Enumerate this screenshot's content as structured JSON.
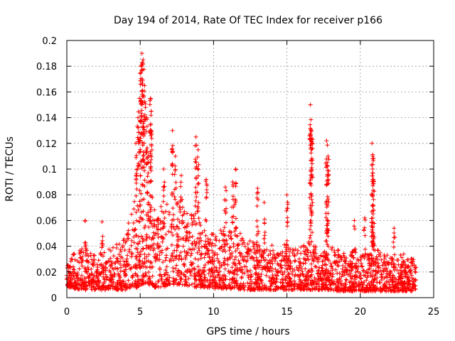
{
  "chart_data": {
    "type": "scatter",
    "title": "Day 194 of 2014, Rate Of TEC Index for receiver p166",
    "xlabel": "GPS time / hours",
    "ylabel": "ROTI / TECUs",
    "xlim": [
      0,
      25
    ],
    "ylim": [
      0,
      0.2
    ],
    "x_ticks": [
      0,
      5,
      10,
      15,
      20,
      25
    ],
    "y_ticks": [
      0,
      0.02,
      0.04,
      0.06,
      0.08,
      0.1,
      0.12,
      0.14,
      0.16,
      0.18,
      0.2
    ],
    "x_tick_labels": [
      "0",
      "5",
      "10",
      "15",
      "20",
      "25"
    ],
    "y_tick_labels": [
      "0",
      "0.02",
      "0.04",
      "0.06",
      "0.08",
      "0.1",
      "0.12",
      "0.14",
      "0.16",
      "0.18",
      "0.2"
    ],
    "grid": true,
    "marker": "+",
    "series": [
      {
        "name": "ROTI",
        "color": "#ff0000",
        "envelope": {
          "x": [
            0,
            0.5,
            1,
            1.5,
            2,
            2.5,
            3,
            3.5,
            4,
            4.5,
            4.8,
            5.0,
            5.2,
            5.5,
            5.8,
            6.0,
            6.5,
            7.0,
            7.5,
            8.0,
            8.5,
            9.0,
            9.5,
            10.0,
            10.5,
            11.0,
            11.5,
            12.0,
            12.5,
            13.0,
            13.5,
            14.0,
            14.5,
            15.0,
            15.5,
            16.0,
            16.5,
            17.0,
            17.5,
            18.0,
            18.5,
            19.0,
            19.5,
            20.0,
            20.5,
            21.0,
            21.5,
            22.0,
            22.5,
            23.0,
            23.5,
            23.8
          ],
          "typical_max": [
            0.025,
            0.035,
            0.04,
            0.038,
            0.033,
            0.037,
            0.04,
            0.042,
            0.05,
            0.07,
            0.09,
            0.1,
            0.1,
            0.09,
            0.08,
            0.07,
            0.075,
            0.08,
            0.075,
            0.07,
            0.065,
            0.06,
            0.055,
            0.05,
            0.055,
            0.055,
            0.05,
            0.05,
            0.045,
            0.045,
            0.042,
            0.042,
            0.04,
            0.042,
            0.04,
            0.04,
            0.045,
            0.04,
            0.042,
            0.04,
            0.038,
            0.036,
            0.036,
            0.036,
            0.038,
            0.038,
            0.036,
            0.035,
            0.035,
            0.035,
            0.035,
            0.03
          ],
          "min": [
            0.008,
            0.007,
            0.006,
            0.006,
            0.006,
            0.006,
            0.006,
            0.006,
            0.006,
            0.006,
            0.008,
            0.01,
            0.01,
            0.01,
            0.008,
            0.008,
            0.008,
            0.01,
            0.01,
            0.01,
            0.008,
            0.008,
            0.008,
            0.007,
            0.007,
            0.007,
            0.007,
            0.006,
            0.006,
            0.006,
            0.006,
            0.006,
            0.006,
            0.006,
            0.006,
            0.006,
            0.006,
            0.006,
            0.006,
            0.006,
            0.005,
            0.005,
            0.005,
            0.005,
            0.005,
            0.005,
            0.005,
            0.005,
            0.005,
            0.005,
            0.005,
            0.006
          ]
        },
        "spikes": [
          {
            "x": 1.25,
            "y": 0.06
          },
          {
            "x": 2.4,
            "y": 0.059
          },
          {
            "x": 4.7,
            "y": 0.12
          },
          {
            "x": 4.85,
            "y": 0.14
          },
          {
            "x": 4.95,
            "y": 0.155
          },
          {
            "x": 5.05,
            "y": 0.175
          },
          {
            "x": 5.12,
            "y": 0.19
          },
          {
            "x": 5.2,
            "y": 0.185
          },
          {
            "x": 5.3,
            "y": 0.165
          },
          {
            "x": 5.45,
            "y": 0.14
          },
          {
            "x": 5.55,
            "y": 0.11
          },
          {
            "x": 5.7,
            "y": 0.155
          },
          {
            "x": 5.75,
            "y": 0.145
          },
          {
            "x": 6.6,
            "y": 0.1
          },
          {
            "x": 7.2,
            "y": 0.13
          },
          {
            "x": 7.4,
            "y": 0.11
          },
          {
            "x": 7.8,
            "y": 0.095
          },
          {
            "x": 8.8,
            "y": 0.125
          },
          {
            "x": 8.95,
            "y": 0.115
          },
          {
            "x": 9.5,
            "y": 0.092
          },
          {
            "x": 10.8,
            "y": 0.086
          },
          {
            "x": 11.5,
            "y": 0.1
          },
          {
            "x": 11.3,
            "y": 0.09
          },
          {
            "x": 13.0,
            "y": 0.085
          },
          {
            "x": 13.45,
            "y": 0.074
          },
          {
            "x": 15.0,
            "y": 0.08
          },
          {
            "x": 16.6,
            "y": 0.15
          },
          {
            "x": 16.65,
            "y": 0.13
          },
          {
            "x": 16.7,
            "y": 0.124
          },
          {
            "x": 17.7,
            "y": 0.122
          },
          {
            "x": 17.8,
            "y": 0.11
          },
          {
            "x": 17.75,
            "y": 0.103
          },
          {
            "x": 19.6,
            "y": 0.06
          },
          {
            "x": 20.3,
            "y": 0.062
          },
          {
            "x": 20.8,
            "y": 0.12
          },
          {
            "x": 20.85,
            "y": 0.11
          },
          {
            "x": 20.9,
            "y": 0.092
          },
          {
            "x": 20.85,
            "y": 0.08
          },
          {
            "x": 22.3,
            "y": 0.054
          }
        ]
      }
    ]
  }
}
